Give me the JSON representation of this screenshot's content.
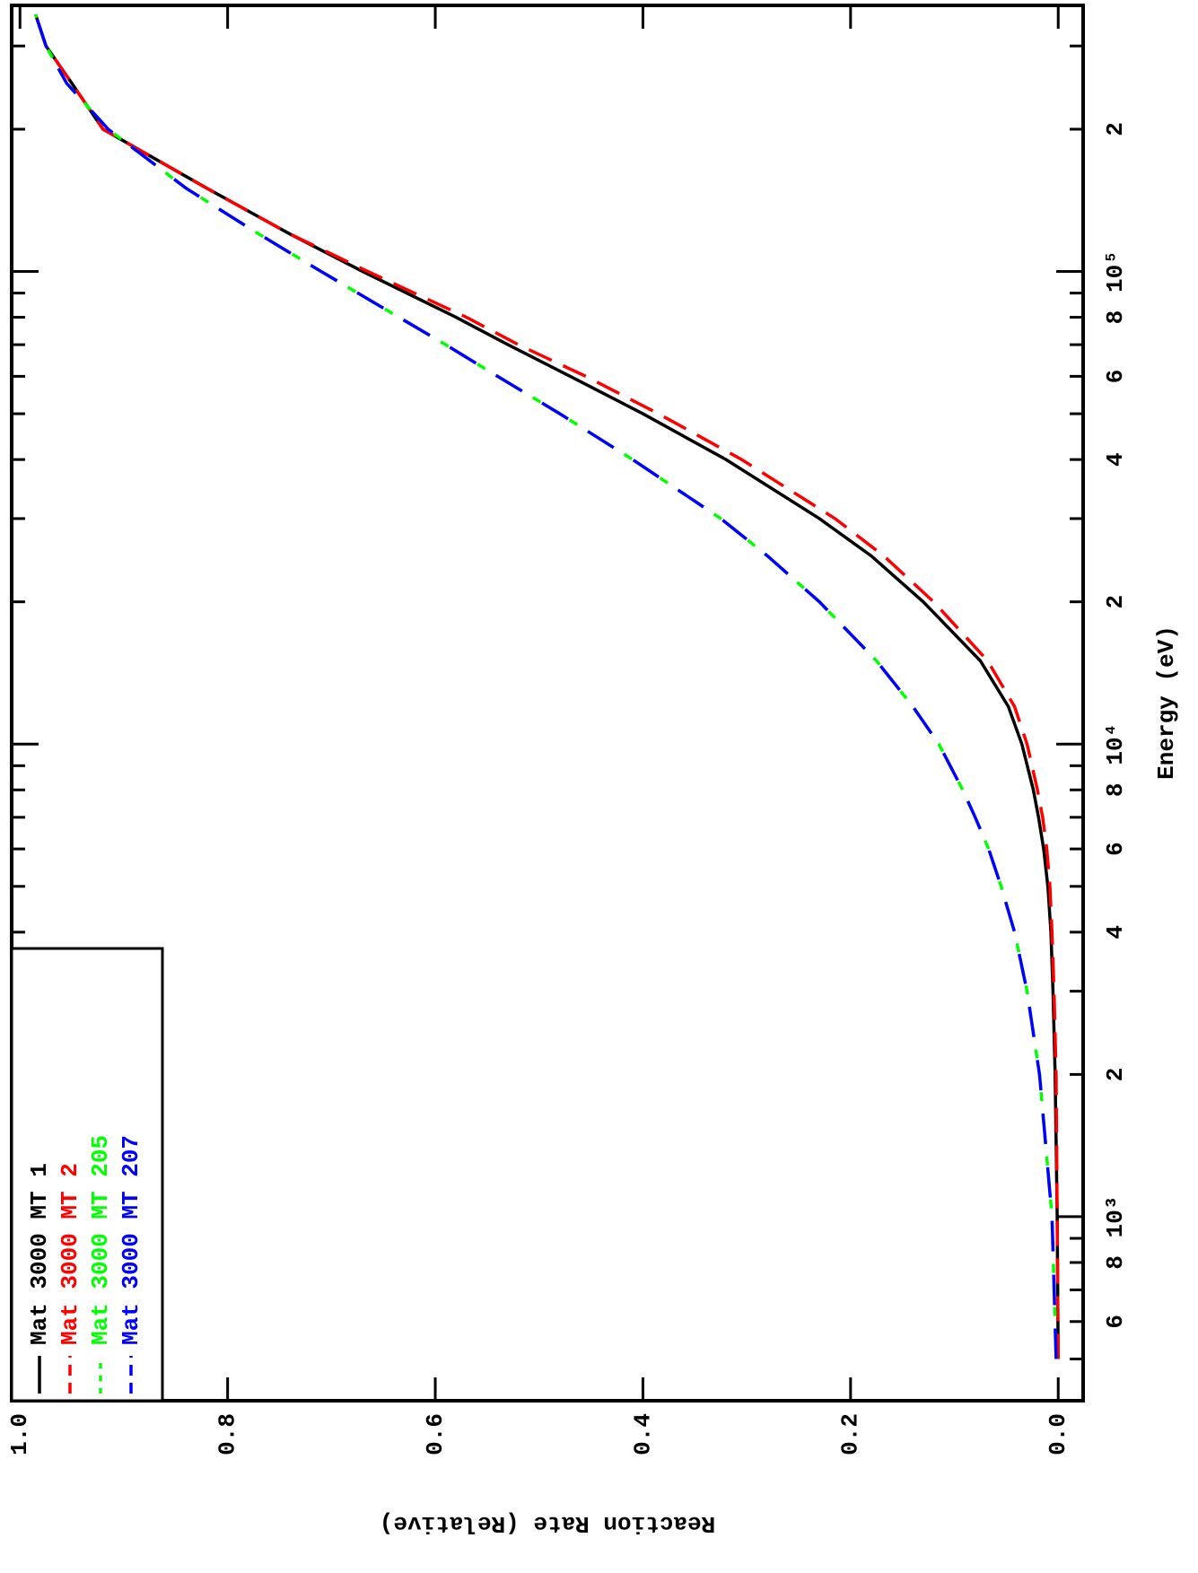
{
  "chart_data": {
    "type": "line",
    "xlabel": "Energy (eV)",
    "ylabel": "Reaction Rate (Relative)",
    "xscale": "log",
    "grid": false,
    "legend": "upper left",
    "xlim": [
      408,
      365600
    ],
    "ylim": [
      -0.024,
      1.008
    ],
    "xticks": [
      {
        "value": 600,
        "label": "6"
      },
      {
        "value": 800,
        "label": "8"
      },
      {
        "value": 1000,
        "label": "10³"
      },
      {
        "value": 2000,
        "label": "2"
      },
      {
        "value": 4000,
        "label": "4"
      },
      {
        "value": 6000,
        "label": "6"
      },
      {
        "value": 8000,
        "label": "8"
      },
      {
        "value": 10000,
        "label": "10⁴"
      },
      {
        "value": 20000,
        "label": "2"
      },
      {
        "value": 40000,
        "label": "4"
      },
      {
        "value": 60000,
        "label": "6"
      },
      {
        "value": 80000,
        "label": "8"
      },
      {
        "value": 100000,
        "label": "10⁵"
      },
      {
        "value": 200000,
        "label": "2"
      }
    ],
    "xminorticks": [
      500,
      700,
      900,
      3000,
      5000,
      7000,
      9000,
      30000,
      50000,
      70000,
      90000,
      300000
    ],
    "yticks": [
      {
        "value": 0,
        "label": "0.0"
      },
      0.2,
      0.4,
      0.6,
      0.8,
      {
        "value": 1,
        "label": "1.0"
      }
    ],
    "x": [
      500,
      1000,
      2000,
      3000,
      4000,
      5000,
      6000,
      7000,
      8000,
      10000,
      12000,
      15000,
      20000,
      25000,
      30000,
      40000,
      50000,
      60000,
      70000,
      80000,
      100000,
      120000,
      150000,
      200000,
      250000,
      300000,
      350000
    ],
    "series": [
      {
        "name": "Mat 3000 MT 1",
        "color": "#000000",
        "dash": "solid",
        "values": [
          0.0,
          0.001,
          0.003,
          0.005,
          0.007,
          0.01,
          0.014,
          0.019,
          0.024,
          0.035,
          0.048,
          0.075,
          0.13,
          0.18,
          0.23,
          0.32,
          0.4,
          0.47,
          0.53,
          0.58,
          0.67,
          0.74,
          0.82,
          0.92,
          0.95,
          0.975,
          0.985
        ]
      },
      {
        "name": "Mat 3000 MT 2",
        "color": "#ff0000",
        "dash": "long",
        "values": [
          0.0,
          0.001,
          0.002,
          0.004,
          0.006,
          0.008,
          0.011,
          0.015,
          0.02,
          0.03,
          0.042,
          0.068,
          0.12,
          0.168,
          0.215,
          0.305,
          0.385,
          0.455,
          0.52,
          0.57,
          0.665,
          0.74,
          0.82,
          0.92,
          0.95,
          0.975,
          0.985
        ]
      },
      {
        "name": "Mat 3000 MT 205",
        "color": "#00ff00",
        "dash": "short",
        "values": [
          0.002,
          0.006,
          0.018,
          0.03,
          0.042,
          0.055,
          0.067,
          0.08,
          0.092,
          0.115,
          0.14,
          0.175,
          0.23,
          0.28,
          0.325,
          0.41,
          0.48,
          0.54,
          0.59,
          0.635,
          0.71,
          0.77,
          0.84,
          0.915,
          0.955,
          0.975,
          0.985
        ]
      },
      {
        "name": "Mat 3000 MT 207",
        "color": "#0000ff",
        "dash": "longgap",
        "values": [
          0.002,
          0.006,
          0.018,
          0.03,
          0.042,
          0.055,
          0.067,
          0.08,
          0.092,
          0.115,
          0.14,
          0.175,
          0.23,
          0.28,
          0.325,
          0.41,
          0.48,
          0.54,
          0.59,
          0.635,
          0.71,
          0.77,
          0.84,
          0.915,
          0.955,
          0.975,
          0.985
        ]
      }
    ]
  }
}
